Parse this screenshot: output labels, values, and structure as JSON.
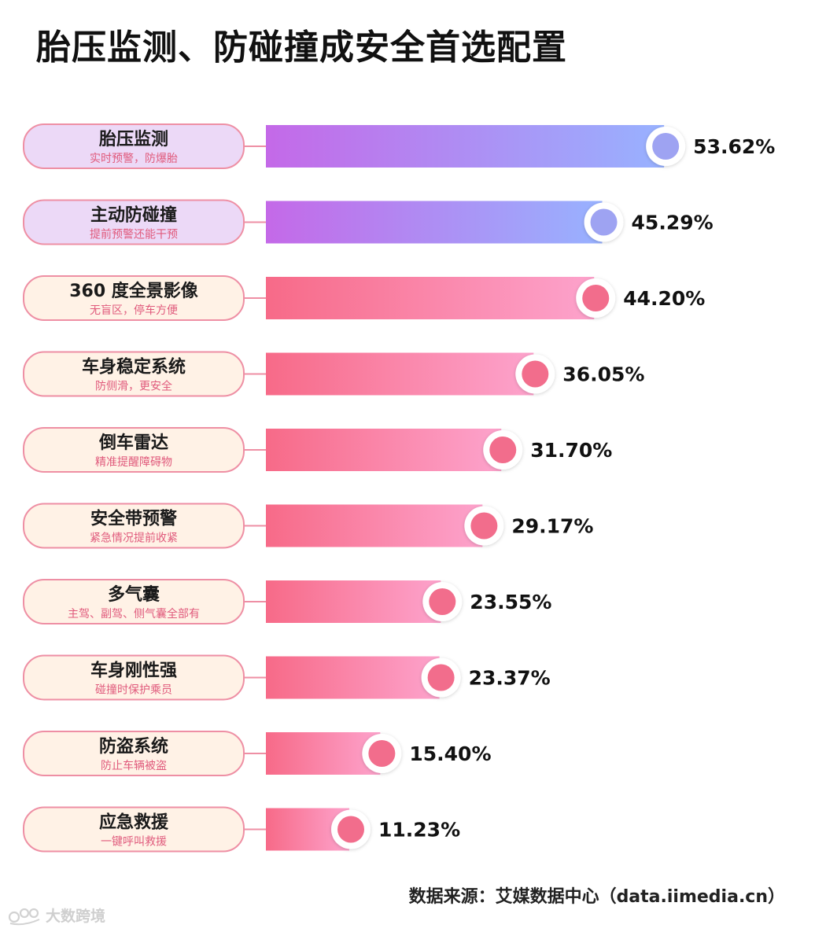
{
  "title": "胎压监测、防碰撞成安全首选配置",
  "source": "数据来源：艾媒数据中心（data.iimedia.cn）",
  "watermark": {
    "text": "大数跨境",
    "icon": "brand-logo-icon"
  },
  "colors": {
    "purple_gradient": [
      "#c469e8",
      "#98b2ff"
    ],
    "pink_gradient": [
      "#f76a88",
      "#fda3cc"
    ],
    "purple_label_fill": "#ecd9f7",
    "peach_label_fill": "#fff2e6",
    "label_border": "#ee8fa4",
    "label_subtext": "#e05a7c",
    "purple_dot": "#9ea3f2",
    "pink_dot": "#f26d8c"
  },
  "chart_data": {
    "type": "bar",
    "orientation": "horizontal",
    "unit": "%",
    "categories": [
      "胎压监测",
      "主动防碰撞",
      "360 度全景影像",
      "车身稳定系统",
      "倒车雷达",
      "安全带预警",
      "多气囊",
      "车身刚性强",
      "防盗系统",
      "应急救援"
    ],
    "subtitles": [
      "实时预警，防爆胎",
      "提前预警还能干预",
      "无盲区，停车方便",
      "防侧滑，更安全",
      "精准提醒障碍物",
      "紧急情况提前收紧",
      "主驾、副驾、侧气囊全部有",
      "碰撞时保护乘员",
      "防止车辆被盗",
      "一键呼叫救援"
    ],
    "values": [
      53.62,
      45.29,
      44.2,
      36.05,
      31.7,
      29.17,
      23.55,
      23.37,
      15.4,
      11.23
    ],
    "value_labels": [
      "53.62%",
      "45.29%",
      "44.20%",
      "36.05%",
      "31.70%",
      "29.17%",
      "23.55%",
      "23.37%",
      "15.40%",
      "11.23%"
    ],
    "highlighted": [
      true,
      true,
      false,
      false,
      false,
      false,
      false,
      false,
      false,
      false
    ],
    "grid": false,
    "legend": "none"
  }
}
